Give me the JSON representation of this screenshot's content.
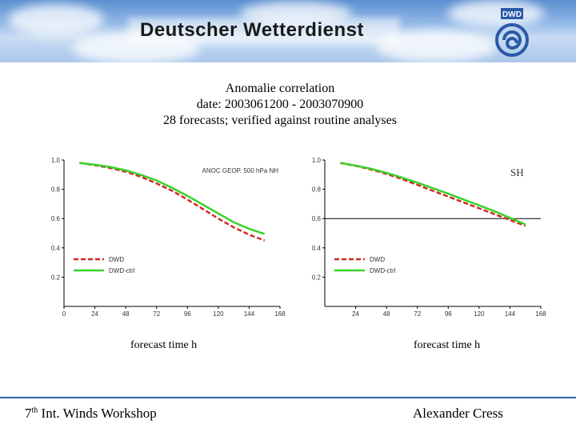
{
  "header": {
    "org_name": "Deutscher Wetterdienst",
    "logo_text": "DWD"
  },
  "title_lines": [
    "Anomalie correlation",
    "date: 2003061200 - 2003070900",
    "28 forecasts; verified against routine analyses"
  ],
  "colors": {
    "dwd": "#d22a24",
    "dwd_ctrl": "#39d22a",
    "footer_rule": "#2f5fa8",
    "logo_blue": "#2a5aa8"
  },
  "chart_data": [
    {
      "type": "line",
      "region": "NH",
      "annotation": "ANOC GEOP. 500 hPa NH",
      "xlabel": "forecast time h",
      "x": [
        12,
        24,
        36,
        48,
        60,
        72,
        84,
        96,
        108,
        120,
        132,
        144,
        156
      ],
      "x_ticks": [
        0,
        24,
        48,
        72,
        96,
        120,
        144,
        168
      ],
      "y_ticks": [
        0.2,
        0.4,
        0.6,
        0.8,
        1.0
      ],
      "y_tick_labels": [
        "0.2",
        "0.4",
        "0.6",
        "0.8",
        "1.0"
      ],
      "xlim": [
        0,
        168
      ],
      "ylim": [
        0,
        1.0
      ],
      "series": [
        {
          "name": "DWD",
          "style": "dashed",
          "values": [
            0.98,
            0.965,
            0.945,
            0.92,
            0.885,
            0.84,
            0.79,
            0.73,
            0.665,
            0.6,
            0.54,
            0.49,
            0.45
          ]
        },
        {
          "name": "DWD-ctrl",
          "style": "solid",
          "values": [
            0.98,
            0.968,
            0.952,
            0.93,
            0.898,
            0.86,
            0.81,
            0.755,
            0.695,
            0.635,
            0.575,
            0.53,
            0.495
          ]
        }
      ]
    },
    {
      "type": "line",
      "region": "SH",
      "annotation": "SH",
      "xlabel": "forecast time h",
      "x": [
        12,
        24,
        36,
        48,
        60,
        72,
        84,
        96,
        108,
        120,
        132,
        144,
        156
      ],
      "x_ticks": [
        24,
        48,
        72,
        96,
        120,
        144,
        168
      ],
      "y_ticks": [
        0.2,
        0.4,
        0.6,
        0.8,
        1.0
      ],
      "y_tick_labels": [
        "0.2",
        "0.4",
        "0.6",
        "0.8",
        "1.0"
      ],
      "hline": 0.6,
      "xlim": [
        0,
        168
      ],
      "ylim": [
        0,
        1.0
      ],
      "series": [
        {
          "name": "DWD",
          "style": "dashed",
          "values": [
            0.98,
            0.96,
            0.935,
            0.905,
            0.87,
            0.83,
            0.79,
            0.75,
            0.71,
            0.67,
            0.63,
            0.59,
            0.55
          ]
        },
        {
          "name": "DWD-ctrl",
          "style": "solid",
          "values": [
            0.98,
            0.962,
            0.94,
            0.912,
            0.88,
            0.845,
            0.808,
            0.77,
            0.73,
            0.69,
            0.65,
            0.605,
            0.56
          ]
        }
      ]
    }
  ],
  "footer": {
    "left_prefix": "7",
    "left_sup": "th",
    "left_rest": " Int. Winds Workshop",
    "right": "Alexander Cress"
  }
}
